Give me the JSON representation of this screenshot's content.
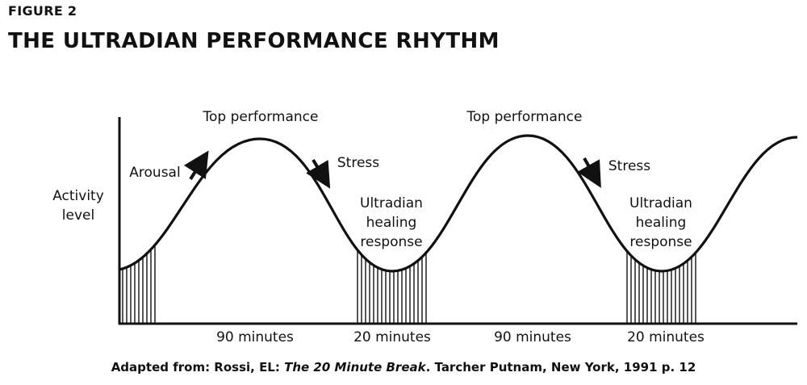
{
  "figure_label": "FIGURE 2",
  "title": "THE ULTRADIAN PERFORMANCE RHYTHM",
  "y_axis_label_line1": "Activity",
  "y_axis_label_line2": "level",
  "peak_label": "Top performance",
  "rise_label": "Arousal",
  "fall_label": "Stress",
  "trough_label_line1": "Ultradian",
  "trough_label_line2": "healing",
  "trough_label_line3": "response",
  "intervals": [
    "90 minutes",
    "20 minutes",
    "90 minutes",
    "20 minutes"
  ],
  "caption": {
    "prefix": "Adapted from: Rossi, EL: ",
    "book": "The 20 Minute Break",
    "suffix": ". Tarcher Putnam, New York, 1991 p. 12"
  }
}
